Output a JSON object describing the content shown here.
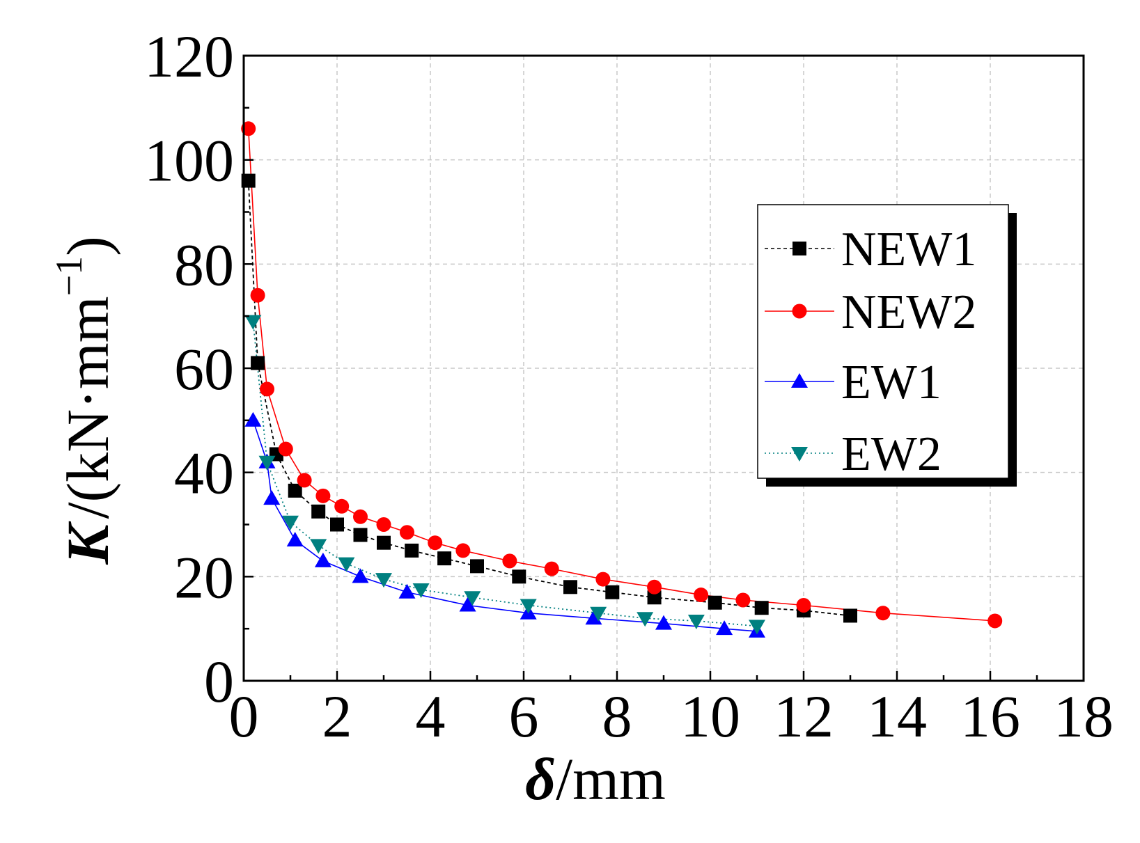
{
  "chart_data": {
    "type": "scatter",
    "title": "",
    "xlabel": {
      "symbol": "δ",
      "unit": "/mm"
    },
    "ylabel": {
      "symbol": "K",
      "unit": "/(kN·mm",
      "exponent": "−1",
      "close": ")"
    },
    "xlim": [
      0,
      18
    ],
    "ylim": [
      0,
      120
    ],
    "xticks": [
      0,
      2,
      4,
      6,
      8,
      10,
      12,
      14,
      16,
      18
    ],
    "yticks": [
      0,
      20,
      40,
      60,
      80,
      100,
      120
    ],
    "grid": true,
    "legend_position": "right-middle",
    "series": [
      {
        "name": "NEW1",
        "color": "#000000",
        "marker": "square",
        "line": "dashed",
        "x": [
          0.1,
          0.3,
          0.7,
          1.1,
          1.6,
          2.0,
          2.5,
          3.0,
          3.6,
          4.3,
          5.0,
          5.9,
          7.0,
          7.9,
          8.8,
          10.1,
          11.1,
          12.0,
          13.0
        ],
        "y": [
          96,
          61,
          43.5,
          36.5,
          32.5,
          30,
          28,
          26.5,
          25,
          23.5,
          22,
          20,
          18,
          17,
          16,
          15,
          14,
          13.5,
          12.5
        ]
      },
      {
        "name": "NEW2",
        "color": "#ff0000",
        "marker": "circle",
        "line": "solid",
        "x": [
          0.1,
          0.3,
          0.5,
          0.9,
          1.3,
          1.7,
          2.1,
          2.5,
          3.0,
          3.5,
          4.1,
          4.7,
          5.7,
          6.6,
          7.7,
          8.8,
          9.8,
          10.7,
          12.0,
          13.7,
          16.1
        ],
        "y": [
          106,
          74,
          56,
          44.5,
          38.5,
          35.5,
          33.5,
          31.5,
          30,
          28.5,
          26.5,
          25,
          23,
          21.5,
          19.5,
          18,
          16.5,
          15.5,
          14.5,
          13,
          11.5
        ]
      },
      {
        "name": "EW1",
        "color": "#0000ff",
        "marker": "triangle-up",
        "line": "solid",
        "x": [
          0.2,
          0.5,
          0.6,
          1.1,
          1.7,
          2.5,
          3.5,
          4.8,
          6.1,
          7.5,
          9.0,
          10.3,
          11.0
        ],
        "y": [
          50,
          42,
          35,
          27,
          23,
          20,
          17,
          14.5,
          13,
          12,
          11,
          10,
          9.5
        ]
      },
      {
        "name": "EW2",
        "color": "#008080",
        "marker": "triangle-down",
        "line": "dotted",
        "x": [
          0.2,
          0.5,
          1.0,
          1.6,
          2.2,
          3.0,
          3.8,
          4.9,
          6.1,
          7.6,
          8.6,
          9.7,
          11.0
        ],
        "y": [
          69,
          42,
          30.5,
          26,
          22.5,
          19.5,
          17.5,
          16,
          14.5,
          13,
          12,
          11.5,
          10.5
        ]
      }
    ]
  }
}
